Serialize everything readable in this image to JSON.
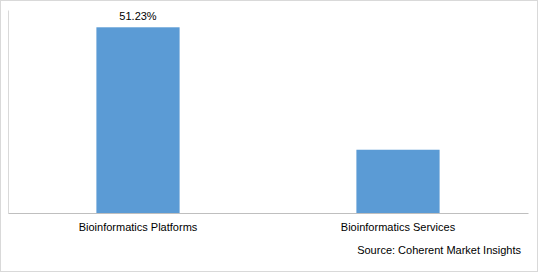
{
  "chart_data": {
    "type": "bar",
    "categories": [
      "Bioinformatics Platforms",
      "Bioinformatics Services"
    ],
    "values": [
      51.23,
      17.45
    ],
    "value_labels": [
      "51.23%",
      null
    ],
    "data_labels": true,
    "color": "#5b9bd5",
    "ylim": [
      0,
      56
    ],
    "tick_labels": "x",
    "grid": false,
    "source": "Source: Coherent Market Insights"
  }
}
